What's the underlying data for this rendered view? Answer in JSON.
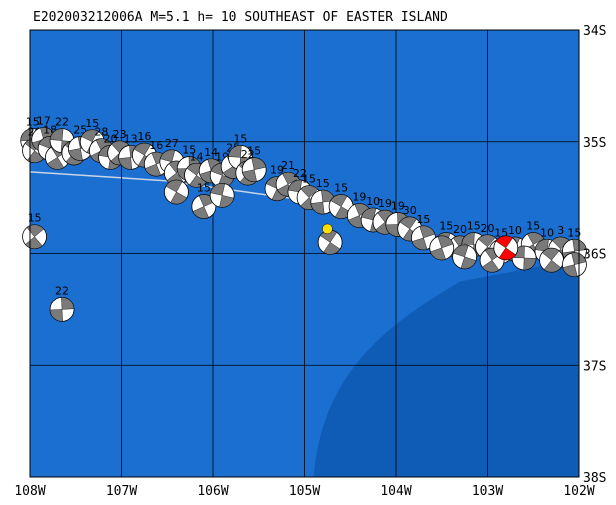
{
  "title": "E202003212006A M=5.1 h= 10 SOUTHEAST OF EASTER ISLAND",
  "colors": {
    "ocean": "#1a6fd0",
    "deep": "#0f5cb6",
    "grid": "#000000",
    "ridge": "#c8d4e8",
    "event_fill": "#ff0000",
    "epicenter": "#ffe000"
  },
  "axes": {
    "lon_labels": [
      "108W",
      "107W",
      "106W",
      "105W",
      "104W",
      "103W",
      "102W"
    ],
    "lat_labels": [
      "34S",
      "35S",
      "36S",
      "37S",
      "38S"
    ],
    "lon_range": [
      -108,
      -102
    ],
    "lat_range": [
      -38,
      -34
    ]
  },
  "epicenter": {
    "lon": -104.75,
    "lat": -35.78
  },
  "main_event": {
    "lon": -102.8,
    "lat": -35.95
  },
  "mechanisms": [
    {
      "lon": -107.97,
      "lat": -34.99,
      "label": "15"
    },
    {
      "lon": -107.95,
      "lat": -35.08,
      "label": "20"
    },
    {
      "lon": -107.85,
      "lat": -34.98,
      "label": "17"
    },
    {
      "lon": -107.78,
      "lat": -35.06,
      "label": "18"
    },
    {
      "lon": -107.7,
      "lat": -35.14,
      "label": "30"
    },
    {
      "lon": -107.65,
      "lat": -34.99,
      "label": "22"
    },
    {
      "lon": -107.52,
      "lat": -35.1,
      "label": ""
    },
    {
      "lon": -107.45,
      "lat": -35.06,
      "label": "25"
    },
    {
      "lon": -107.32,
      "lat": -35.0,
      "label": "15"
    },
    {
      "lon": -107.22,
      "lat": -35.08,
      "label": "28"
    },
    {
      "lon": -107.12,
      "lat": -35.14,
      "label": "20"
    },
    {
      "lon": -107.02,
      "lat": -35.1,
      "label": "23"
    },
    {
      "lon": -106.9,
      "lat": -35.14,
      "label": "13"
    },
    {
      "lon": -106.75,
      "lat": -35.12,
      "label": "16"
    },
    {
      "lon": -106.62,
      "lat": -35.2,
      "label": "16"
    },
    {
      "lon": -106.45,
      "lat": -35.18,
      "label": "27"
    },
    {
      "lon": -106.4,
      "lat": -35.28,
      "label": ""
    },
    {
      "lon": -106.26,
      "lat": -35.24,
      "label": "15"
    },
    {
      "lon": -106.18,
      "lat": -35.3,
      "label": "14"
    },
    {
      "lon": -106.02,
      "lat": -35.26,
      "label": "14"
    },
    {
      "lon": -105.9,
      "lat": -35.3,
      "label": "19"
    },
    {
      "lon": -105.78,
      "lat": -35.22,
      "label": "25"
    },
    {
      "lon": -105.7,
      "lat": -35.14,
      "label": "15"
    },
    {
      "lon": -105.62,
      "lat": -35.28,
      "label": "22"
    },
    {
      "lon": -105.55,
      "lat": -35.25,
      "label": "15"
    },
    {
      "lon": -105.3,
      "lat": -35.42,
      "label": "19"
    },
    {
      "lon": -105.18,
      "lat": -35.38,
      "label": "21"
    },
    {
      "lon": -105.05,
      "lat": -35.45,
      "label": "22"
    },
    {
      "lon": -104.95,
      "lat": -35.5,
      "label": "15"
    },
    {
      "lon": -104.8,
      "lat": -35.54,
      "label": "15"
    },
    {
      "lon": -104.6,
      "lat": -35.58,
      "label": "15"
    },
    {
      "lon": -104.4,
      "lat": -35.66,
      "label": "19"
    },
    {
      "lon": -104.25,
      "lat": -35.7,
      "label": "10"
    },
    {
      "lon": -104.12,
      "lat": -35.72,
      "label": "19"
    },
    {
      "lon": -103.98,
      "lat": -35.74,
      "label": "19"
    },
    {
      "lon": -103.85,
      "lat": -35.78,
      "label": "30"
    },
    {
      "lon": -103.7,
      "lat": -35.86,
      "label": "15"
    },
    {
      "lon": -103.45,
      "lat": -35.92,
      "label": "15"
    },
    {
      "lon": -103.3,
      "lat": -35.95,
      "label": "20"
    },
    {
      "lon": -103.15,
      "lat": -35.92,
      "label": "15"
    },
    {
      "lon": -103.0,
      "lat": -35.94,
      "label": "20"
    },
    {
      "lon": -102.85,
      "lat": -35.98,
      "label": "15"
    },
    {
      "lon": -102.7,
      "lat": -35.96,
      "label": "10"
    },
    {
      "lon": -102.5,
      "lat": -35.92,
      "label": "15"
    },
    {
      "lon": -102.35,
      "lat": -35.98,
      "label": "10"
    },
    {
      "lon": -102.2,
      "lat": -35.96,
      "label": "3"
    },
    {
      "lon": -102.05,
      "lat": -35.98,
      "label": "15"
    },
    {
      "lon": -106.4,
      "lat": -35.45,
      "label": ""
    },
    {
      "lon": -106.1,
      "lat": -35.58,
      "label": "15"
    },
    {
      "lon": -105.9,
      "lat": -35.48,
      "label": ""
    },
    {
      "lon": -107.95,
      "lat": -35.85,
      "label": "15"
    },
    {
      "lon": -107.65,
      "lat": -36.5,
      "label": "22"
    },
    {
      "lon": -104.72,
      "lat": -35.9,
      "label": ""
    },
    {
      "lon": -103.5,
      "lat": -35.95,
      "label": ""
    },
    {
      "lon": -103.25,
      "lat": -36.03,
      "label": ""
    },
    {
      "lon": -102.95,
      "lat": -36.06,
      "label": ""
    },
    {
      "lon": -102.6,
      "lat": -36.04,
      "label": ""
    },
    {
      "lon": -102.3,
      "lat": -36.06,
      "label": ""
    },
    {
      "lon": -102.05,
      "lat": -36.1,
      "label": ""
    }
  ]
}
